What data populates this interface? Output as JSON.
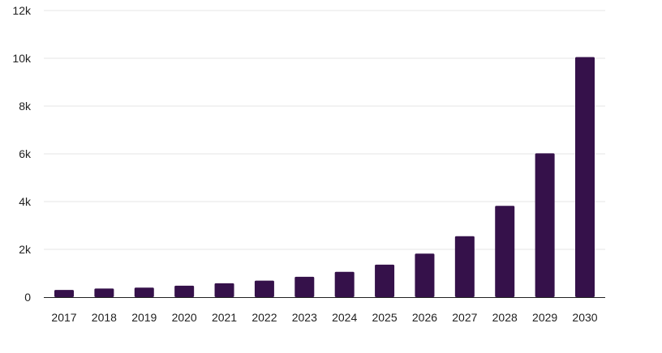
{
  "chart_data": {
    "type": "bar",
    "title": "",
    "xlabel": "",
    "ylabel": "",
    "categories": [
      "2017",
      "2018",
      "2019",
      "2020",
      "2021",
      "2022",
      "2023",
      "2024",
      "2025",
      "2026",
      "2027",
      "2028",
      "2029",
      "2030"
    ],
    "values": [
      300,
      360,
      400,
      480,
      580,
      690,
      850,
      1060,
      1360,
      1820,
      2550,
      3820,
      6020,
      10050
    ],
    "ylim": [
      0,
      12000
    ],
    "yticks": [
      0,
      2000,
      4000,
      6000,
      8000,
      10000,
      12000
    ],
    "ytick_labels": [
      "0",
      "2k",
      "4k",
      "6k",
      "8k",
      "10k",
      "12k"
    ],
    "grid": true,
    "legend": "none",
    "colors": {
      "bar": "#35114a",
      "grid": "#e6e6e6",
      "axis": "#222222",
      "text": "#1f1f1f"
    }
  }
}
